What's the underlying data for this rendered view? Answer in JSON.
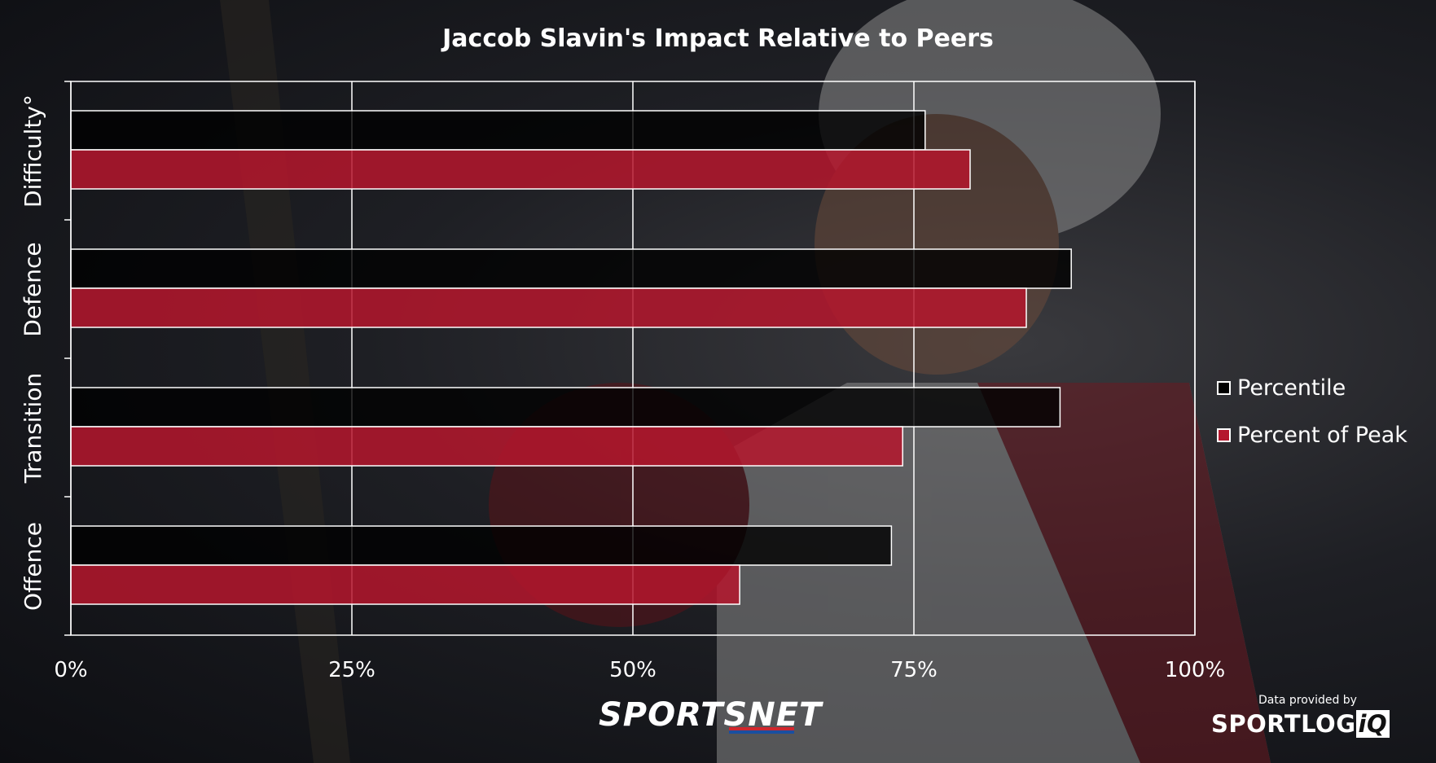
{
  "chart_data": {
    "type": "bar",
    "orientation": "horizontal",
    "title": "Jaccob Slavin's Impact Relative to Peers",
    "categories": [
      "Difficulty°",
      "Defence",
      "Transition",
      "Offence"
    ],
    "series": [
      {
        "name": "Percentile",
        "values": [
          76,
          89,
          88,
          73
        ],
        "color": "#000000"
      },
      {
        "name": "Percent of Peak",
        "values": [
          80,
          85,
          74,
          59.5
        ],
        "color": "#b5162d"
      }
    ],
    "xlim": [
      0,
      100
    ],
    "xticks": [
      "0%",
      "25%",
      "50%",
      "75%",
      "100%"
    ],
    "grid": true,
    "legend_position": "right"
  },
  "branding": {
    "sportsnet": "SPORTSNET",
    "data_provided_by": "Data provided by",
    "sportlogiq_main": "SPORTLOG",
    "sportlogiq_iq": "iQ"
  },
  "colors": {
    "percentile_fill": "#000000",
    "peak_fill": "#b5162d",
    "frame": "#ffffff",
    "sportsnet_stripe_red": "#d0262d",
    "sportsnet_stripe_blue": "#1a4fa0"
  }
}
